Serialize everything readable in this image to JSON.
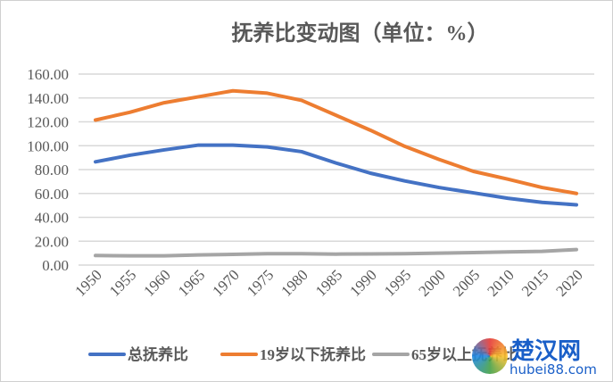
{
  "chart_data": {
    "type": "line",
    "title": "抚养比变动图（单位：%）",
    "x": [
      1950,
      1955,
      1960,
      1965,
      1970,
      1975,
      1980,
      1985,
      1990,
      1995,
      2000,
      2005,
      2010,
      2015,
      2020
    ],
    "xticklabels": [
      "1950",
      "1955",
      "1960",
      "1965",
      "1970",
      "1975",
      "1980",
      "1985",
      "1990",
      "1995",
      "2000",
      "2005",
      "2010",
      "2015",
      "2020"
    ],
    "yticklabels": [
      "0.00",
      "20.00",
      "40.00",
      "60.00",
      "80.00",
      "100.00",
      "120.00",
      "140.00",
      "160.00"
    ],
    "ylim": [
      0,
      160
    ],
    "grid": true,
    "legend_position": "bottom",
    "series": [
      {
        "name": "总抚养比",
        "color": "#4472c4",
        "values": [
          86.5,
          92,
          96.5,
          100.5,
          100.5,
          99,
          95,
          85.5,
          77,
          70.5,
          65,
          60.5,
          56,
          52.5,
          50.5
        ]
      },
      {
        "name": "19岁以下抚养比",
        "color": "#ed7d31",
        "values": [
          121.5,
          128,
          136,
          141,
          146,
          144,
          138,
          125.5,
          113,
          99.5,
          88.5,
          78.5,
          72,
          65,
          60
        ]
      },
      {
        "name": "65岁以上抚养比",
        "color": "#a5a5a5",
        "values": [
          8,
          7.8,
          7.8,
          8.5,
          9,
          9.5,
          9.5,
          9.2,
          9.3,
          9.5,
          10,
          10.5,
          11,
          11.5,
          13
        ]
      }
    ]
  },
  "watermark": {
    "cn": "楚汉网",
    "en": "hubei88.com"
  }
}
